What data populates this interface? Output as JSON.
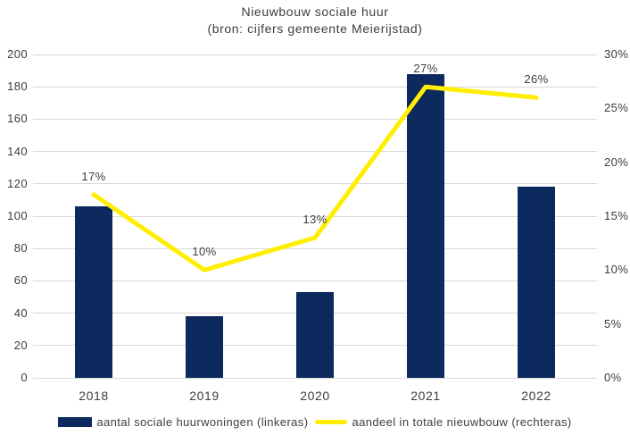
{
  "title": {
    "line1": "Nieuwbouw sociale huur",
    "line2": "(bron: cijfers gemeente Meierijstad)"
  },
  "colors": {
    "bar": "#0c2a5d",
    "line": "#ffee00",
    "grid": "#d9d9d9",
    "text": "#3d3d3d"
  },
  "legend": {
    "bar_label": "aantal sociale huurwoningen (linkeras)",
    "line_label": "aandeel in totale nieuwbouw (rechteras)"
  },
  "chart_data": {
    "type": "bar",
    "categories": [
      "2018",
      "2019",
      "2020",
      "2021",
      "2022"
    ],
    "series": [
      {
        "name": "aantal sociale huurwoningen (linkeras)",
        "type": "bar",
        "axis": "left",
        "values": [
          106,
          38,
          53,
          188,
          118
        ]
      },
      {
        "name": "aandeel in totale nieuwbouw (rechteras)",
        "type": "line",
        "axis": "right",
        "values": [
          17,
          10,
          13,
          27,
          26
        ],
        "data_labels": [
          "17%",
          "10%",
          "13%",
          "27%",
          "26%"
        ]
      }
    ],
    "title": "Nieuwbouw sociale huur (bron: cijfers gemeente Meierijstad)",
    "xlabel": "",
    "ylabel_left": "",
    "ylabel_right": "",
    "left_axis": {
      "min": 0,
      "max": 200,
      "step": 20,
      "ticks": [
        "200",
        "180",
        "160",
        "140",
        "120",
        "100",
        "80",
        "60",
        "40",
        "20",
        "0"
      ]
    },
    "right_axis": {
      "min": 0,
      "max": 30,
      "step": 5,
      "ticks": [
        "30%",
        "25%",
        "20%",
        "15%",
        "10%",
        "5%",
        "0%"
      ]
    },
    "grid": true,
    "legend_position": "bottom"
  }
}
